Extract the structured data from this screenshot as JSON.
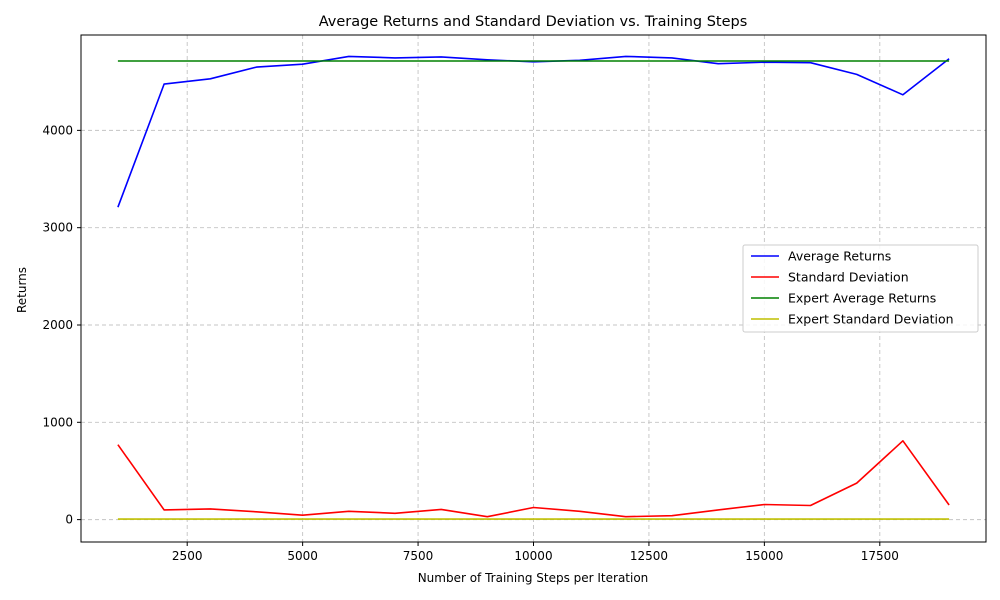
{
  "chart_data": {
    "type": "line",
    "title": "Average Returns and Standard Deviation vs. Training Steps",
    "xlabel": "Number of Training Steps per Iteration",
    "ylabel": "Returns",
    "xlim": [
      200,
      19800
    ],
    "ylim": [
      -230,
      4980
    ],
    "x_ticks": [
      2500,
      5000,
      7500,
      10000,
      12500,
      15000,
      17500
    ],
    "y_ticks": [
      0,
      1000,
      2000,
      3000,
      4000
    ],
    "grid": true,
    "legend_position": "center-right",
    "x": [
      1000,
      2000,
      3000,
      4000,
      5000,
      6000,
      7000,
      8000,
      9000,
      10000,
      11000,
      12000,
      13000,
      14000,
      15000,
      16000,
      17000,
      18000,
      19000
    ],
    "series": [
      {
        "name": "Average Returns",
        "color": "#0000ff",
        "values": [
          3210,
          4475,
          4530,
          4650,
          4680,
          4760,
          4745,
          4755,
          4725,
          4705,
          4720,
          4760,
          4745,
          4685,
          4700,
          4695,
          4575,
          4365,
          4735
        ]
      },
      {
        "name": "Standard Deviation",
        "color": "#ff0000",
        "values": [
          770,
          100,
          110,
          80,
          45,
          85,
          65,
          105,
          30,
          125,
          85,
          30,
          40,
          100,
          155,
          145,
          375,
          810,
          150
        ]
      },
      {
        "name": "Expert Average Returns",
        "color": "#008000",
        "values": [
          4713,
          4713,
          4713,
          4713,
          4713,
          4713,
          4713,
          4713,
          4713,
          4713,
          4713,
          4713,
          4713,
          4713,
          4713,
          4713,
          4713,
          4713,
          4713
        ]
      },
      {
        "name": "Expert Standard Deviation",
        "color": "#bfbf00",
        "values": [
          5,
          5,
          5,
          5,
          5,
          5,
          5,
          5,
          5,
          5,
          5,
          5,
          5,
          5,
          5,
          5,
          5,
          5,
          5
        ]
      }
    ]
  }
}
